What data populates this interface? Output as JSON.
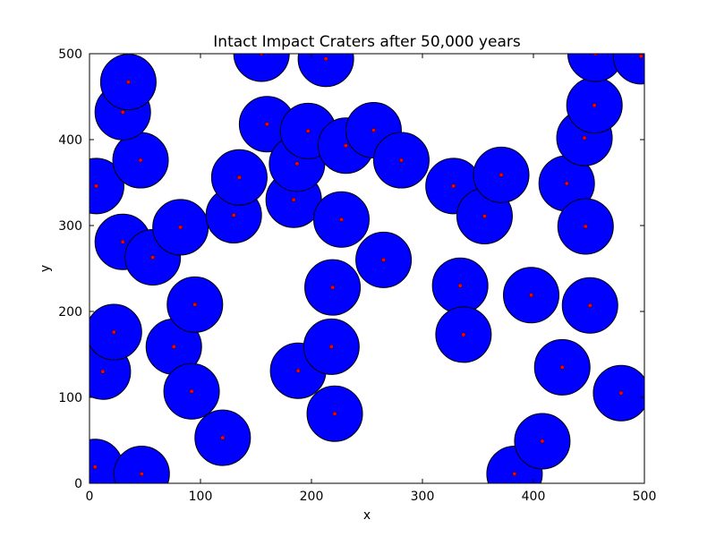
{
  "chart_data": {
    "type": "scatter",
    "title": "Intact Impact Craters after 50,000 years",
    "xlabel": "x",
    "ylabel": "y",
    "xlim": [
      0,
      500
    ],
    "ylim": [
      0,
      500
    ],
    "xticks": [
      0,
      100,
      200,
      300,
      400,
      500
    ],
    "yticks": [
      0,
      100,
      200,
      300,
      400,
      500
    ],
    "grid": false,
    "crater_radius": 25,
    "crater_color": "#0000ff",
    "center_color": "#ff0000",
    "series": [
      {
        "values": [
          {
            "x": 5,
            "y": 19
          },
          {
            "x": 47,
            "y": 11
          },
          {
            "x": 12,
            "y": 130
          },
          {
            "x": 22,
            "y": 176
          },
          {
            "x": 30,
            "y": 281
          },
          {
            "x": 57,
            "y": 263
          },
          {
            "x": 6,
            "y": 346
          },
          {
            "x": 46,
            "y": 376
          },
          {
            "x": 30,
            "y": 432
          },
          {
            "x": 35,
            "y": 467
          },
          {
            "x": 76,
            "y": 159
          },
          {
            "x": 92,
            "y": 107
          },
          {
            "x": 95,
            "y": 208
          },
          {
            "x": 82,
            "y": 298
          },
          {
            "x": 120,
            "y": 53
          },
          {
            "x": 130,
            "y": 312
          },
          {
            "x": 135,
            "y": 356
          },
          {
            "x": 160,
            "y": 418
          },
          {
            "x": 155,
            "y": 500
          },
          {
            "x": 188,
            "y": 131
          },
          {
            "x": 184,
            "y": 330
          },
          {
            "x": 187,
            "y": 372
          },
          {
            "x": 197,
            "y": 410
          },
          {
            "x": 213,
            "y": 494
          },
          {
            "x": 218,
            "y": 159
          },
          {
            "x": 219,
            "y": 228
          },
          {
            "x": 221,
            "y": 81
          },
          {
            "x": 227,
            "y": 307
          },
          {
            "x": 231,
            "y": 393
          },
          {
            "x": 256,
            "y": 411
          },
          {
            "x": 265,
            "y": 260
          },
          {
            "x": 281,
            "y": 376
          },
          {
            "x": 328,
            "y": 346
          },
          {
            "x": 334,
            "y": 230
          },
          {
            "x": 337,
            "y": 173
          },
          {
            "x": 356,
            "y": 311
          },
          {
            "x": 371,
            "y": 359
          },
          {
            "x": 383,
            "y": 11
          },
          {
            "x": 398,
            "y": 219
          },
          {
            "x": 408,
            "y": 49
          },
          {
            "x": 426,
            "y": 135
          },
          {
            "x": 430,
            "y": 349
          },
          {
            "x": 446,
            "y": 402
          },
          {
            "x": 447,
            "y": 299
          },
          {
            "x": 451,
            "y": 207
          },
          {
            "x": 455,
            "y": 440
          },
          {
            "x": 456,
            "y": 500
          },
          {
            "x": 479,
            "y": 105
          },
          {
            "x": 497,
            "y": 497
          }
        ]
      }
    ]
  }
}
